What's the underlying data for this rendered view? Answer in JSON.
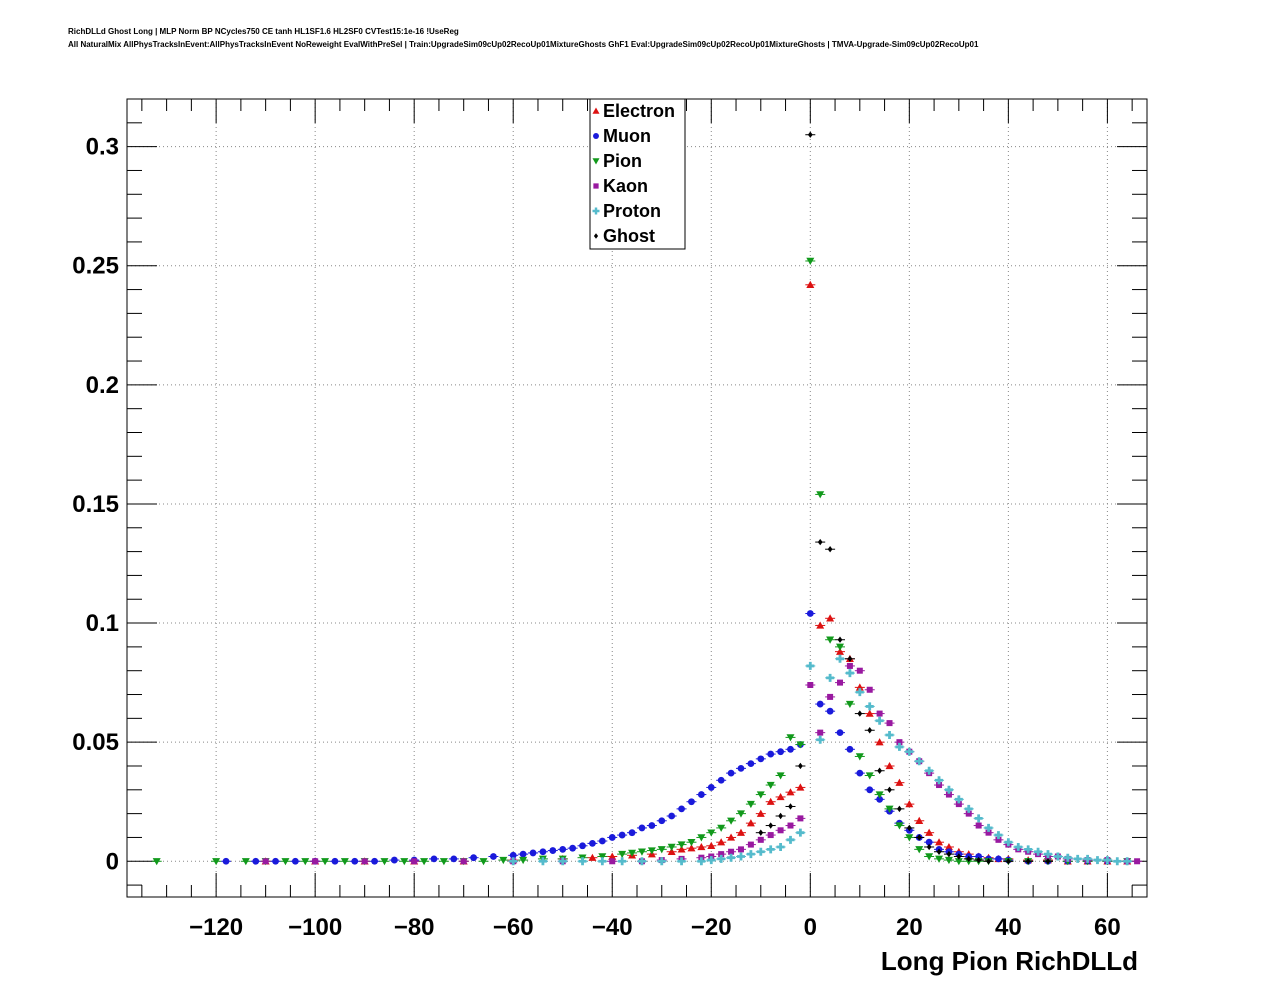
{
  "title_line1": "RichDLLd Ghost Long | MLP Norm BP NCycles750 CE tanh HL1SF1.6 HL2SF0 CVTest15:1e-16 !UseReg",
  "title_line2": "All NaturalMix AllPhysTracksInEvent:AllPhysTracksInEvent NoReweight EvalWithPreSel | Train:UpgradeSim09cUp02RecoUp01MixtureGhosts GhF1 Eval:UpgradeSim09cUp02RecoUp01MixtureGhosts | TMVA-Upgrade-Sim09cUp02RecoUp01",
  "chart_data": {
    "type": "scatter",
    "xlabel": "Long Pion RichDLLd",
    "ylabel": "",
    "xlim": [
      -138,
      68
    ],
    "ylim": [
      -0.015,
      0.32
    ],
    "xticks": [
      -120,
      -100,
      -80,
      -60,
      -40,
      -20,
      0,
      20,
      40,
      60
    ],
    "xtick_labels": [
      "−120",
      "−100",
      "−80",
      "−60",
      "−40",
      "−20",
      "0",
      "20",
      "40",
      "60"
    ],
    "yticks": [
      0,
      0.05,
      0.1,
      0.15,
      0.2,
      0.25,
      0.3
    ],
    "ytick_labels": [
      "0",
      "0.05",
      "0.1",
      "0.15",
      "0.2",
      "0.25",
      "0.3"
    ],
    "grid": true,
    "legend_position": "top-center",
    "series": [
      {
        "name": "Electron",
        "color": "#dd1111",
        "marker": "triangle-up",
        "x": [
          -110,
          -100,
          -90,
          -80,
          -70,
          -60,
          -50,
          -44,
          -40,
          -36,
          -32,
          -28,
          -26,
          -24,
          -22,
          -20,
          -18,
          -16,
          -14,
          -12,
          -10,
          -8,
          -6,
          -4,
          -2,
          0,
          2,
          4,
          6,
          8,
          10,
          12,
          14,
          16,
          18,
          20,
          22,
          24,
          26,
          28,
          30,
          32,
          34,
          36,
          38,
          40,
          44,
          48,
          52,
          56,
          60,
          64
        ],
        "y": [
          0,
          0,
          0,
          0,
          0,
          0.0005,
          0.001,
          0.0015,
          0.002,
          0.0025,
          0.003,
          0.004,
          0.005,
          0.0055,
          0.006,
          0.0065,
          0.008,
          0.01,
          0.012,
          0.016,
          0.02,
          0.025,
          0.027,
          0.029,
          0.031,
          0.242,
          0.099,
          0.102,
          0.088,
          0.085,
          0.073,
          0.062,
          0.05,
          0.04,
          0.033,
          0.024,
          0.017,
          0.012,
          0.008,
          0.006,
          0.004,
          0.003,
          0.002,
          0.0015,
          0.001,
          0.001,
          0.0005,
          0.0005,
          0,
          0,
          0,
          0
        ]
      },
      {
        "name": "Muon",
        "color": "#1a1adb",
        "marker": "circle",
        "x": [
          -118,
          -112,
          -108,
          -104,
          -100,
          -96,
          -92,
          -88,
          -84,
          -80,
          -76,
          -72,
          -68,
          -64,
          -60,
          -58,
          -56,
          -54,
          -52,
          -50,
          -48,
          -46,
          -44,
          -42,
          -40,
          -38,
          -36,
          -34,
          -32,
          -30,
          -28,
          -26,
          -24,
          -22,
          -20,
          -18,
          -16,
          -14,
          -12,
          -10,
          -8,
          -6,
          -4,
          -2,
          0,
          2,
          4,
          6,
          8,
          10,
          12,
          14,
          16,
          18,
          20,
          22,
          24,
          26,
          28,
          30,
          32,
          34,
          36,
          38,
          40,
          44,
          48,
          52,
          56,
          60,
          64
        ],
        "y": [
          0,
          0,
          0,
          0,
          0,
          0,
          0,
          0,
          0.0005,
          0.0005,
          0.001,
          0.001,
          0.0015,
          0.002,
          0.0025,
          0.003,
          0.0035,
          0.004,
          0.0045,
          0.005,
          0.0055,
          0.0065,
          0.0075,
          0.0085,
          0.01,
          0.011,
          0.012,
          0.014,
          0.015,
          0.017,
          0.019,
          0.022,
          0.025,
          0.028,
          0.031,
          0.034,
          0.037,
          0.039,
          0.041,
          0.043,
          0.045,
          0.046,
          0.047,
          0.049,
          0.104,
          0.066,
          0.063,
          0.054,
          0.047,
          0.037,
          0.03,
          0.026,
          0.021,
          0.016,
          0.013,
          0.01,
          0.008,
          0.005,
          0.004,
          0.003,
          0.002,
          0.002,
          0.001,
          0.001,
          0.0005,
          0,
          0,
          0,
          0,
          0,
          0
        ]
      },
      {
        "name": "Pion",
        "color": "#11991b",
        "marker": "triangle-down",
        "x": [
          -132,
          -120,
          -114,
          -110,
          -106,
          -102,
          -98,
          -94,
          -90,
          -86,
          -82,
          -78,
          -74,
          -70,
          -66,
          -62,
          -58,
          -54,
          -50,
          -46,
          -42,
          -38,
          -36,
          -34,
          -32,
          -30,
          -28,
          -26,
          -24,
          -22,
          -20,
          -18,
          -16,
          -14,
          -12,
          -10,
          -8,
          -6,
          -4,
          -2,
          0,
          2,
          4,
          6,
          8,
          10,
          12,
          14,
          16,
          18,
          20,
          22,
          24,
          26,
          28,
          30,
          32,
          34,
          36,
          40,
          44,
          48,
          52,
          56,
          60,
          64
        ],
        "y": [
          0,
          0,
          0,
          0,
          0,
          0,
          0,
          0,
          0,
          0,
          0,
          0,
          0,
          0,
          0,
          0.0005,
          0.0005,
          0.001,
          0.001,
          0.0015,
          0.002,
          0.003,
          0.0035,
          0.004,
          0.0045,
          0.005,
          0.006,
          0.007,
          0.008,
          0.01,
          0.012,
          0.014,
          0.017,
          0.02,
          0.024,
          0.028,
          0.032,
          0.036,
          0.052,
          0.049,
          0.252,
          0.154,
          0.093,
          0.09,
          0.066,
          0.044,
          0.036,
          0.028,
          0.022,
          0.015,
          0.01,
          0.005,
          0.002,
          0.001,
          0.0005,
          0,
          0,
          0,
          0,
          0,
          0,
          0,
          0,
          0,
          0,
          0
        ]
      },
      {
        "name": "Kaon",
        "color": "#9919a0",
        "marker": "square",
        "x": [
          -110,
          -100,
          -90,
          -80,
          -70,
          -60,
          -50,
          -40,
          -34,
          -30,
          -26,
          -22,
          -20,
          -18,
          -16,
          -14,
          -12,
          -10,
          -8,
          -6,
          -4,
          -2,
          0,
          2,
          4,
          6,
          8,
          10,
          12,
          14,
          16,
          18,
          20,
          22,
          24,
          26,
          28,
          30,
          32,
          34,
          36,
          38,
          40,
          42,
          44,
          46,
          48,
          50,
          52,
          56,
          60,
          64,
          66
        ],
        "y": [
          0,
          0,
          0,
          0,
          0,
          0,
          0,
          0,
          0,
          0.0005,
          0.001,
          0.0015,
          0.002,
          0.003,
          0.004,
          0.005,
          0.007,
          0.009,
          0.011,
          0.013,
          0.015,
          0.018,
          0.074,
          0.054,
          0.069,
          0.075,
          0.082,
          0.08,
          0.072,
          0.062,
          0.058,
          0.05,
          0.046,
          0.042,
          0.037,
          0.032,
          0.028,
          0.024,
          0.02,
          0.015,
          0.012,
          0.009,
          0.007,
          0.005,
          0.004,
          0.003,
          0.002,
          0.002,
          0.001,
          0.0005,
          0.0005,
          0,
          0
        ]
      },
      {
        "name": "Proton",
        "color": "#55bbcc",
        "marker": "cross",
        "x": [
          -60,
          -54,
          -50,
          -46,
          -42,
          -38,
          -34,
          -30,
          -26,
          -22,
          -20,
          -18,
          -16,
          -14,
          -12,
          -10,
          -8,
          -6,
          -4,
          -2,
          0,
          2,
          4,
          6,
          8,
          10,
          12,
          14,
          16,
          18,
          20,
          22,
          24,
          26,
          28,
          30,
          32,
          34,
          36,
          38,
          40,
          42,
          44,
          46,
          48,
          50,
          52,
          54,
          56,
          58,
          60,
          62,
          64
        ],
        "y": [
          0,
          0,
          0,
          0,
          0,
          0,
          0,
          0,
          0,
          0,
          0.0005,
          0.001,
          0.0015,
          0.002,
          0.003,
          0.004,
          0.005,
          0.006,
          0.009,
          0.012,
          0.082,
          0.051,
          0.077,
          0.085,
          0.079,
          0.071,
          0.065,
          0.059,
          0.053,
          0.048,
          0.046,
          0.042,
          0.038,
          0.034,
          0.03,
          0.026,
          0.022,
          0.018,
          0.014,
          0.011,
          0.008,
          0.006,
          0.005,
          0.004,
          0.003,
          0.002,
          0.0015,
          0.001,
          0.001,
          0.0005,
          0.0005,
          0,
          0
        ]
      },
      {
        "name": "Ghost",
        "color": "#000000",
        "marker": "diamond",
        "x": [
          -10,
          -8,
          -6,
          -4,
          -2,
          0,
          2,
          4,
          6,
          8,
          10,
          12,
          14,
          16,
          18,
          20,
          22,
          24,
          26,
          28,
          30,
          32,
          34,
          36,
          40,
          44,
          48
        ],
        "y": [
          0.012,
          0.015,
          0.019,
          0.023,
          0.04,
          0.305,
          0.134,
          0.131,
          0.093,
          0.085,
          0.062,
          0.055,
          0.038,
          0.03,
          0.022,
          0.014,
          0.01,
          0.006,
          0.004,
          0.003,
          0.002,
          0.001,
          0.0005,
          0,
          0,
          0,
          0
        ]
      }
    ]
  }
}
